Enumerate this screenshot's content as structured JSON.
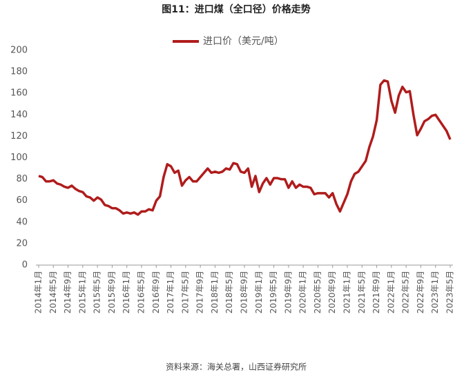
{
  "chart_data": {
    "type": "line",
    "title": "图11：进口煤（全口径）价格走势",
    "source": "资料来源：海关总署，山西证券研究所",
    "categories": [
      "2014年1月",
      null,
      null,
      null,
      "2014年5月",
      null,
      null,
      null,
      "2014年9月",
      null,
      null,
      null,
      "2015年1月",
      null,
      null,
      null,
      "2015年5月",
      null,
      null,
      null,
      "2015年9月",
      null,
      null,
      null,
      "2016年1月",
      null,
      null,
      null,
      "2016年5月",
      null,
      null,
      null,
      "2016年9月",
      null,
      null,
      null,
      "2017年1月",
      null,
      null,
      null,
      "2017年5月",
      null,
      null,
      null,
      "2017年9月",
      null,
      null,
      null,
      "2018年1月",
      null,
      null,
      null,
      "2018年5月",
      null,
      null,
      null,
      "2018年9月",
      null,
      null,
      null,
      "2019年1月",
      null,
      null,
      null,
      "2019年5月",
      null,
      null,
      null,
      "2019年9月",
      null,
      null,
      null,
      "2020年1月",
      null,
      null,
      null,
      "2020年5月",
      null,
      null,
      null,
      "2020年9月",
      null,
      null,
      null,
      "2021年1月",
      null,
      null,
      null,
      "2021年5月",
      null,
      null,
      null,
      "2021年9月",
      null,
      null,
      null,
      "2022年1月",
      null,
      null,
      null,
      "2022年5月",
      null,
      null,
      null,
      "2022年9月",
      null,
      null,
      null,
      "2023年1月",
      null,
      null,
      null,
      "2023年5月"
    ],
    "series": [
      {
        "name": "进口价（美元/吨）",
        "color": "#b01c1c",
        "values": [
          83,
          82,
          78,
          78,
          79,
          76,
          75,
          73,
          72,
          74,
          71,
          69,
          68,
          64,
          63,
          60,
          63,
          61,
          56,
          55,
          53,
          53,
          51,
          48,
          49,
          48,
          49,
          47,
          50,
          50,
          52,
          51,
          60,
          64,
          82,
          94,
          92,
          86,
          88,
          74,
          79,
          82,
          78,
          78,
          82,
          86,
          90,
          86,
          87,
          86,
          87,
          90,
          89,
          95,
          94,
          87,
          86,
          90,
          73,
          83,
          68,
          76,
          81,
          75,
          81,
          81,
          80,
          80,
          72,
          78,
          72,
          75,
          73,
          73,
          72,
          66,
          67,
          67,
          67,
          63,
          67,
          57,
          50,
          58,
          66,
          78,
          85,
          87,
          92,
          97,
          110,
          120,
          135,
          168,
          172,
          171,
          153,
          142,
          158,
          166,
          161,
          162,
          140,
          121,
          127,
          134,
          136,
          139,
          140,
          135,
          130,
          125,
          117
        ]
      }
    ],
    "ylim": [
      0,
      200
    ],
    "yticks": [
      0,
      20,
      40,
      60,
      80,
      100,
      120,
      140,
      160,
      180,
      200
    ],
    "grid": false
  }
}
